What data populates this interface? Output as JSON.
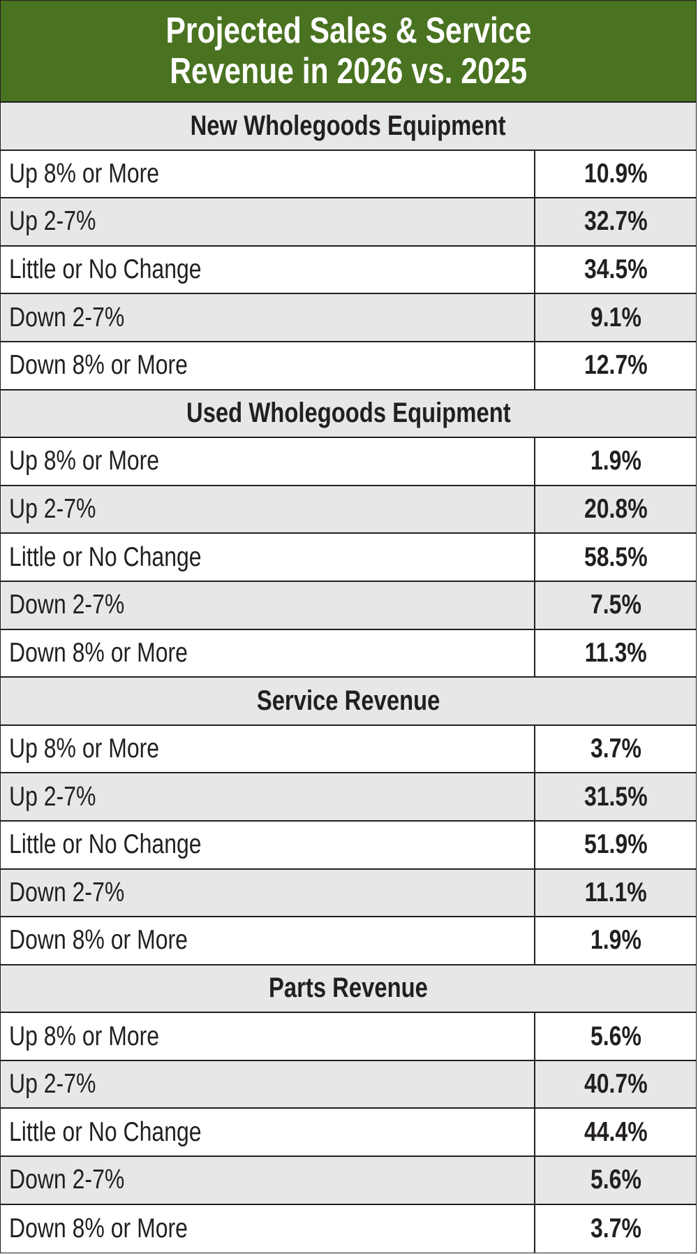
{
  "title": {
    "line1": "Projected Sales & Service",
    "line2": "Revenue in 2026 vs. 2025"
  },
  "colors": {
    "header_bg": "#4a7321",
    "alt_row_bg": "#e6e7e8",
    "text": "#231f20"
  },
  "sections": [
    {
      "heading": "New Wholegoods Equipment",
      "rows": [
        {
          "label": "Up 8% or More",
          "value": "10.9%"
        },
        {
          "label": "Up 2-7%",
          "value": "32.7%"
        },
        {
          "label": "Little or No Change",
          "value": "34.5%"
        },
        {
          "label": "Down 2-7%",
          "value": "9.1%"
        },
        {
          "label": "Down 8% or More",
          "value": "12.7%"
        }
      ]
    },
    {
      "heading": "Used Wholegoods Equipment",
      "rows": [
        {
          "label": "Up 8% or More",
          "value": "1.9%"
        },
        {
          "label": "Up 2-7%",
          "value": "20.8%"
        },
        {
          "label": "Little or No Change",
          "value": "58.5%"
        },
        {
          "label": "Down 2-7%",
          "value": "7.5%"
        },
        {
          "label": "Down 8% or More",
          "value": "11.3%"
        }
      ]
    },
    {
      "heading": "Service Revenue",
      "rows": [
        {
          "label": "Up 8% or More",
          "value": "3.7%"
        },
        {
          "label": "Up 2-7%",
          "value": "31.5%"
        },
        {
          "label": "Little or No Change",
          "value": "51.9%"
        },
        {
          "label": "Down 2-7%",
          "value": "11.1%"
        },
        {
          "label": "Down 8% or More",
          "value": "1.9%"
        }
      ]
    },
    {
      "heading": "Parts Revenue",
      "rows": [
        {
          "label": "Up 8% or More",
          "value": "5.6%"
        },
        {
          "label": "Up 2-7%",
          "value": "40.7%"
        },
        {
          "label": "Little or No Change",
          "value": "44.4%"
        },
        {
          "label": "Down 2-7%",
          "value": "5.6%"
        },
        {
          "label": "Down 8% or More",
          "value": "3.7%"
        }
      ]
    }
  ]
}
